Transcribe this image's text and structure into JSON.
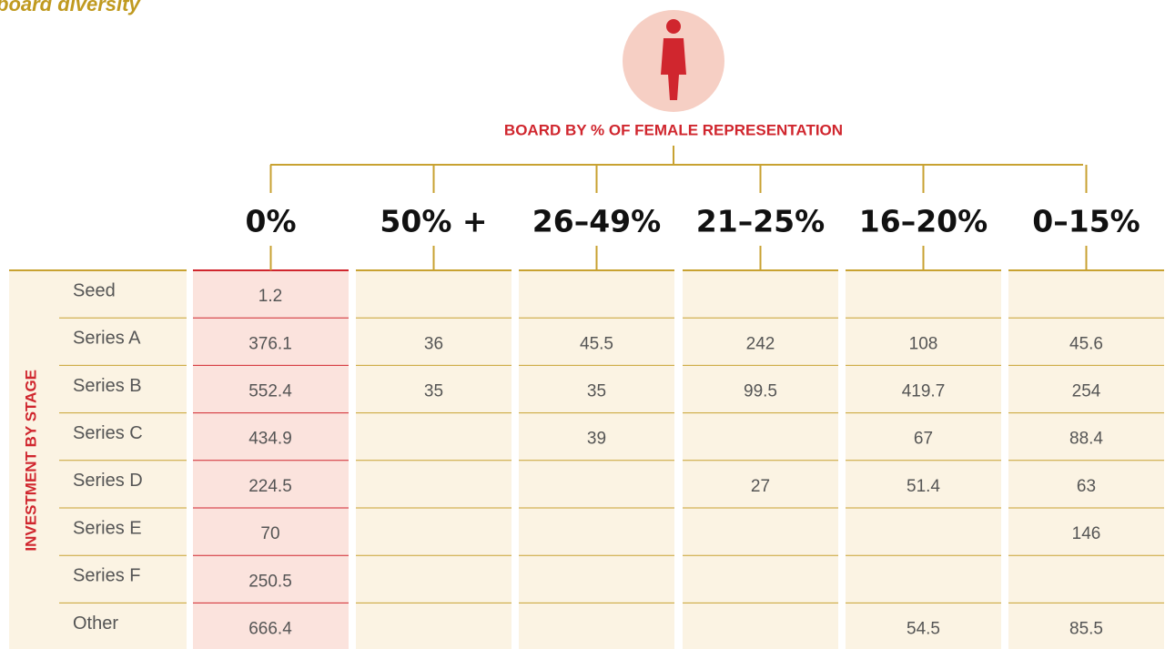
{
  "header": {
    "title": "board diversity",
    "subtitle": "BOARD BY % OF FEMALE REPRESENTATION"
  },
  "table": {
    "row_group_label": "INVESTMENT BY STAGE",
    "columns": [
      "0%",
      "50% +",
      "26–49%",
      "21–25%",
      "16–20%",
      "0–15%"
    ],
    "rows": [
      {
        "label": "Seed",
        "cells": [
          1.2,
          null,
          null,
          null,
          null,
          null
        ]
      },
      {
        "label": "Series A",
        "cells": [
          376.1,
          36,
          45.5,
          242,
          108,
          45.6
        ]
      },
      {
        "label": "Series B",
        "cells": [
          552.4,
          35,
          35,
          99.5,
          419.7,
          254
        ]
      },
      {
        "label": "Series C",
        "cells": [
          434.9,
          null,
          39,
          null,
          67,
          88.4
        ]
      },
      {
        "label": "Series D",
        "cells": [
          224.5,
          null,
          null,
          27,
          51.4,
          63
        ]
      },
      {
        "label": "Series E",
        "cells": [
          70,
          null,
          null,
          null,
          null,
          146
        ]
      },
      {
        "label": "Series F",
        "cells": [
          250.5,
          null,
          null,
          null,
          null,
          null
        ]
      },
      {
        "label": "Other",
        "cells": [
          666.4,
          null,
          null,
          null,
          54.5,
          85.5
        ]
      }
    ]
  }
}
